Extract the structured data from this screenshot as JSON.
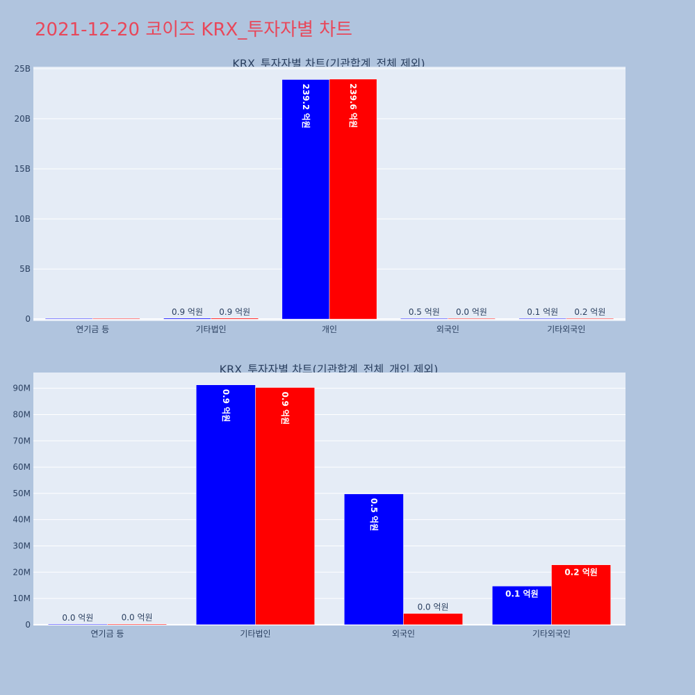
{
  "page": {
    "title": "2021-12-20 코이즈 KRX_투자자별 차트"
  },
  "colors": {
    "series1": "#0000ff",
    "series2": "#ff0000",
    "plot_bg": "#e5ecf6",
    "page_bg": "#b0c4de",
    "title": "#e8475a"
  },
  "chart_data": [
    {
      "type": "bar",
      "title": "KRX_투자자별 차트(기관합계_전체 제외)",
      "categories": [
        "연기금 등",
        "기타법인",
        "개인",
        "외국인",
        "기타외국인"
      ],
      "series": [
        {
          "values": [
            0,
            90000000,
            23920000000,
            50000000,
            15000000
          ],
          "labels": [
            "",
            "0.9 억원",
            "239.2 억원",
            "0.5 억원",
            "0.1 억원"
          ]
        },
        {
          "values": [
            0,
            90000000,
            23960000000,
            4000000,
            23000000
          ],
          "labels": [
            "",
            "0.9 억원",
            "239.6 억원",
            "0.0 억원",
            "0.2 억원"
          ]
        }
      ],
      "y_ticks": [
        {
          "value": 0,
          "label": "0"
        },
        {
          "value": 5000000000,
          "label": "5B"
        },
        {
          "value": 10000000000,
          "label": "10B"
        },
        {
          "value": 15000000000,
          "label": "15B"
        },
        {
          "value": 20000000000,
          "label": "20B"
        },
        {
          "value": 25000000000,
          "label": "25B"
        }
      ],
      "ylim": [
        -200000000,
        25200000000
      ],
      "grid": true
    },
    {
      "type": "bar",
      "title": "KRX_투자자별 차트(기관합계_전체_개인 제외)",
      "categories": [
        "연기금 등",
        "기타법인",
        "외국인",
        "기타외국인"
      ],
      "series": [
        {
          "values": [
            200000,
            91300000,
            49800000,
            14700000
          ],
          "labels": [
            "0.0 억원",
            "0.9 억원",
            "0.5 억원",
            "0.1 억원"
          ]
        },
        {
          "values": [
            300000,
            90300000,
            4300000,
            22800000
          ],
          "labels": [
            "0.0 억원",
            "0.9 억원",
            "0.0 억원",
            "0.2 억원"
          ]
        }
      ],
      "y_ticks": [
        {
          "value": 0,
          "label": "0"
        },
        {
          "value": 10000000,
          "label": "10M"
        },
        {
          "value": 20000000,
          "label": "20M"
        },
        {
          "value": 30000000,
          "label": "30M"
        },
        {
          "value": 40000000,
          "label": "40M"
        },
        {
          "value": 50000000,
          "label": "50M"
        },
        {
          "value": 60000000,
          "label": "60M"
        },
        {
          "value": 70000000,
          "label": "70M"
        },
        {
          "value": 80000000,
          "label": "80M"
        },
        {
          "value": 90000000,
          "label": "90M"
        }
      ],
      "ylim": [
        -300000,
        96000000
      ],
      "grid": true
    }
  ]
}
